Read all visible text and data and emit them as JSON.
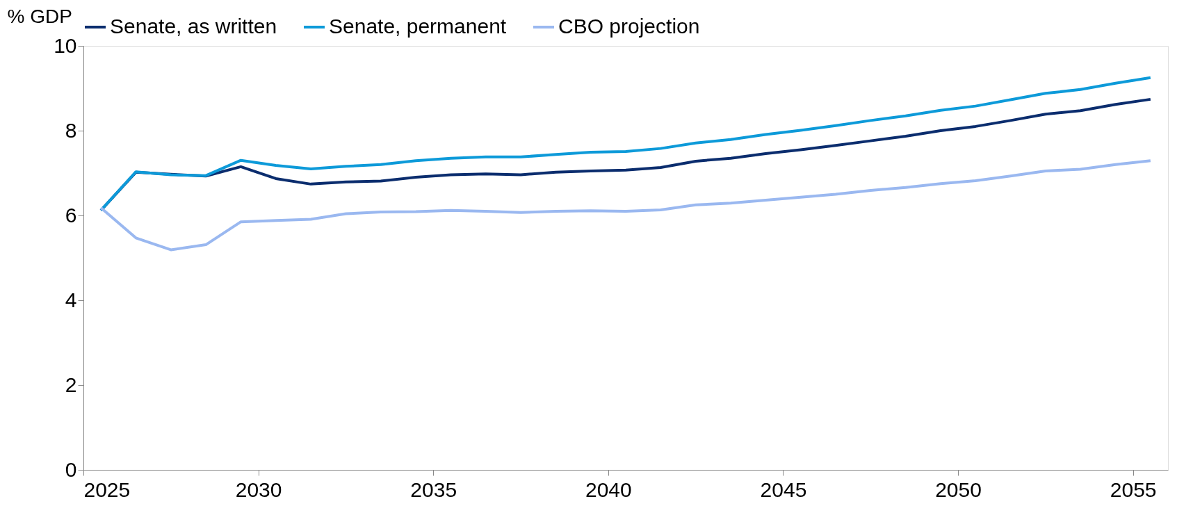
{
  "chart_data": {
    "type": "line",
    "ylabel": "% GDP",
    "x": [
      2025.5,
      2026.5,
      2027.5,
      2028.5,
      2029.5,
      2030.5,
      2031.5,
      2032.5,
      2033.5,
      2034.5,
      2035.5,
      2036.5,
      2037.5,
      2038.5,
      2039.5,
      2040.5,
      2041.5,
      2042.5,
      2043.5,
      2044.5,
      2045.5,
      2046.5,
      2047.5,
      2048.5,
      2049.5,
      2050.5,
      2051.5,
      2052.5,
      2053.5,
      2054.5,
      2055.5
    ],
    "series": [
      {
        "name": "Senate, as written",
        "color": "#0b2d6e",
        "values": [
          6.12,
          7.02,
          6.97,
          6.93,
          7.15,
          6.87,
          6.74,
          6.79,
          6.81,
          6.9,
          6.96,
          6.98,
          6.96,
          7.02,
          7.05,
          7.07,
          7.13,
          7.28,
          7.35,
          7.46,
          7.55,
          7.65,
          7.76,
          7.87,
          8.0,
          8.1,
          8.24,
          8.39,
          8.47,
          8.62,
          8.74
        ]
      },
      {
        "name": "Senate, permanent",
        "color": "#0d9ad9",
        "values": [
          6.12,
          7.03,
          6.96,
          6.94,
          7.3,
          7.18,
          7.1,
          7.16,
          7.2,
          7.29,
          7.35,
          7.38,
          7.38,
          7.44,
          7.49,
          7.51,
          7.58,
          7.71,
          7.79,
          7.91,
          8.01,
          8.12,
          8.24,
          8.35,
          8.48,
          8.58,
          8.73,
          8.88,
          8.97,
          9.12,
          9.25
        ]
      },
      {
        "name": "CBO projection",
        "color": "#9ab8f0",
        "values": [
          6.18,
          5.47,
          5.19,
          5.31,
          5.85,
          5.88,
          5.91,
          6.04,
          6.08,
          6.09,
          6.12,
          6.1,
          6.07,
          6.1,
          6.11,
          6.1,
          6.13,
          6.25,
          6.29,
          6.36,
          6.43,
          6.5,
          6.59,
          6.66,
          6.75,
          6.82,
          6.93,
          7.05,
          7.09,
          7.2,
          7.29
        ]
      }
    ],
    "xlim": [
      2025,
      2056
    ],
    "xticks": [
      2025,
      2030,
      2035,
      2040,
      2045,
      2050,
      2055
    ],
    "ylim": [
      0,
      10
    ],
    "yticks": [
      0,
      2,
      4,
      6,
      8,
      10
    ],
    "grid": false,
    "legend": "top",
    "marker": "none",
    "line_style": "solid"
  }
}
